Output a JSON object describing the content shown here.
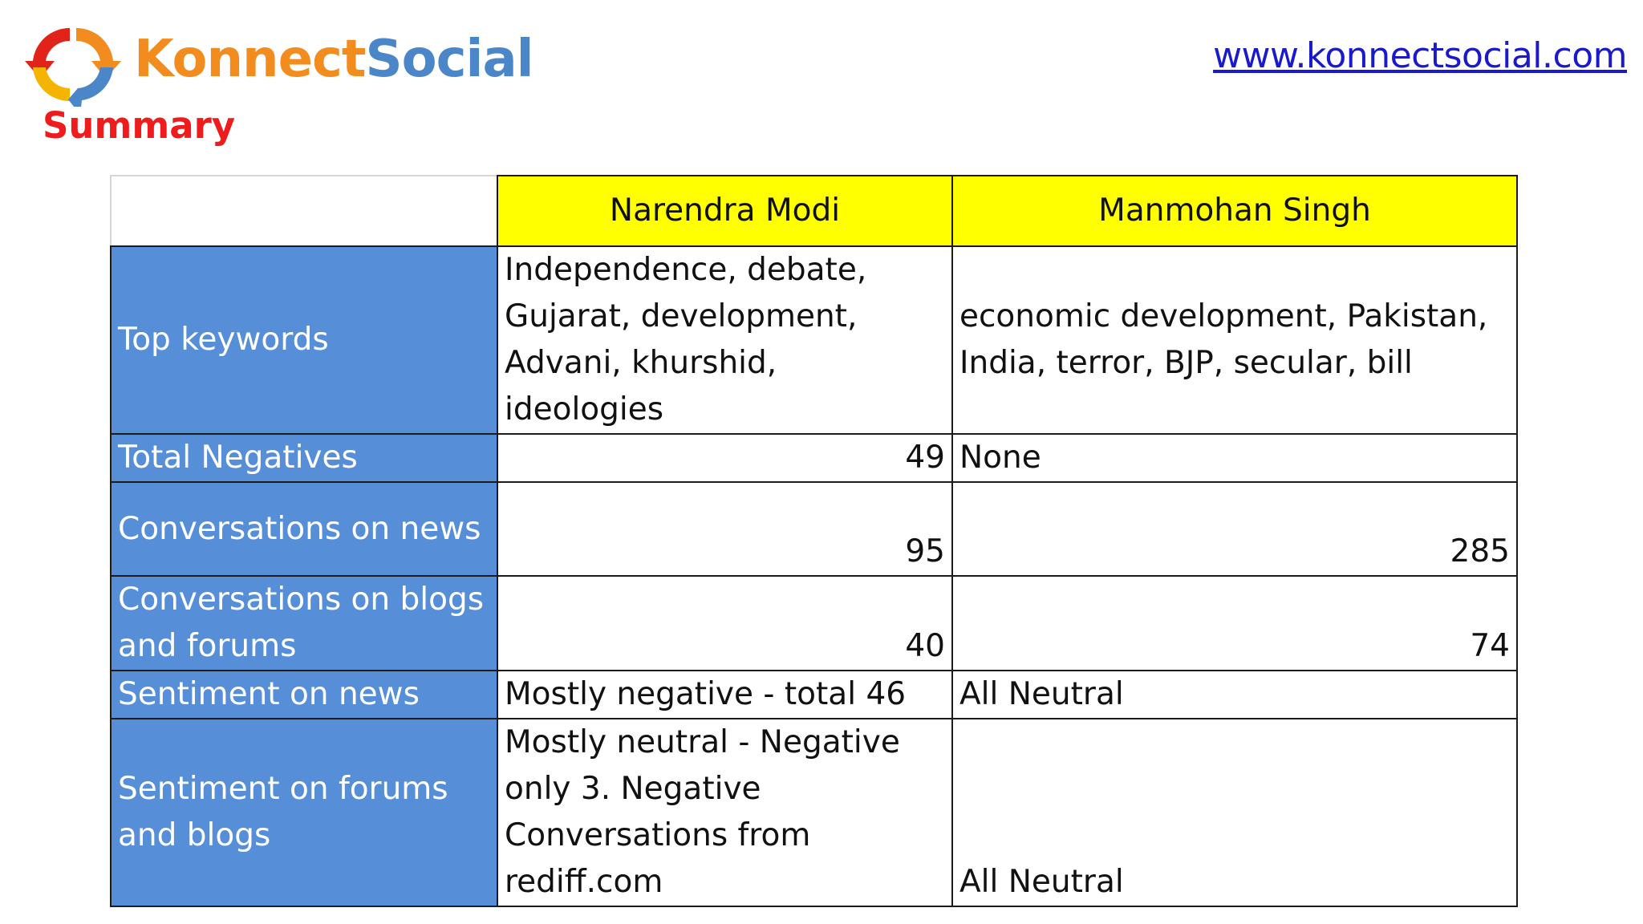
{
  "header": {
    "brand_part1": "Konnect",
    "brand_part2": "Social",
    "url": "www.konnectsocial.com",
    "page_title": "Summary",
    "logo_icon": "chat-arrows-logo-icon"
  },
  "table": {
    "columns": [
      "Narendra Modi",
      "Manmohan Singh"
    ],
    "rows": [
      {
        "label": "Top keywords",
        "modi": "Independence, debate, Gujarat, development, Advani, khurshid, ideologies",
        "singh": "economic development, Pakistan, India, terror, BJP, secular, bill"
      },
      {
        "label": "Total Negatives",
        "modi": "49",
        "singh": "None"
      },
      {
        "label": "Conversations on news",
        "modi": "95",
        "singh": "285"
      },
      {
        "label": "Conversations on blogs and forums",
        "modi": "40",
        "singh": "74"
      },
      {
        "label": "Sentiment on news",
        "modi": "Mostly negative - total 46",
        "singh": "All Neutral"
      },
      {
        "label": "Sentiment on forums and blogs",
        "modi": "Mostly neutral - Negative only 3. Negative Conversations from rediff.com",
        "singh": "All Neutral"
      }
    ]
  },
  "colors": {
    "header_yellow": "#ffff00",
    "row_header_blue": "#568fd8",
    "summary_red": "#ee1c1c",
    "brand_orange": "#f28c1e",
    "brand_blue": "#4a86c8",
    "link_blue": "#1a1acc"
  }
}
